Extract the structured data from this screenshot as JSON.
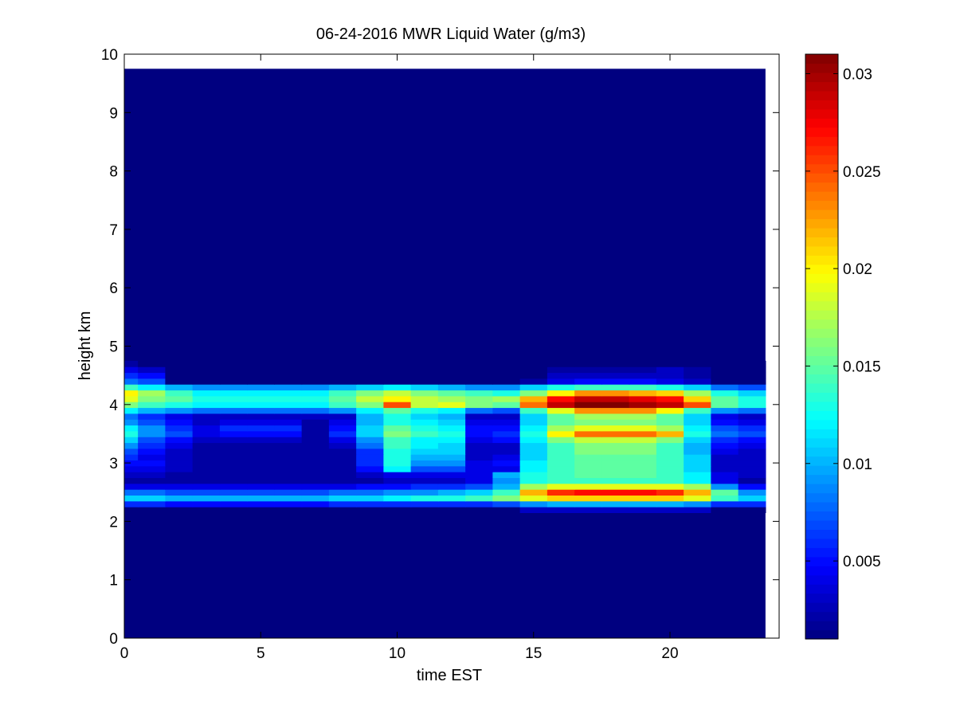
{
  "chart_data": {
    "type": "heatmap",
    "title": "06-24-2016 MWR Liquid Water (g/m3)",
    "xlabel": "time EST",
    "ylabel": "height km",
    "xlim": [
      0,
      24
    ],
    "ylim": [
      0,
      10
    ],
    "x_ticks": [
      0,
      5,
      10,
      15,
      20
    ],
    "y_ticks": [
      0,
      1,
      2,
      3,
      4,
      5,
      6,
      7,
      8,
      9,
      10
    ],
    "colormap": "jet",
    "clim": [
      0.001,
      0.031
    ],
    "colorbar_ticks": [
      0.005,
      0.01,
      0.015,
      0.02,
      0.025,
      0.03
    ],
    "colorbar_tick_labels": [
      "0.005",
      "0.01",
      "0.015",
      "0.02",
      "0.025",
      "0.03"
    ],
    "grid": false,
    "data_extent": {
      "x_min": 0,
      "x_max": 23.5,
      "y_min": 0,
      "y_max": 9.75
    },
    "time_bins": [
      0,
      1,
      2,
      3,
      4,
      5,
      6,
      7,
      8,
      9,
      10,
      11,
      12,
      13,
      14,
      15,
      16,
      17,
      18,
      19,
      20,
      21,
      22,
      23
    ],
    "height_bins_km": [
      2.2,
      2.3,
      2.4,
      2.5,
      2.6,
      2.7,
      2.8,
      2.9,
      3.0,
      3.1,
      3.2,
      3.3,
      3.4,
      3.5,
      3.6,
      3.7,
      3.8,
      3.9,
      4.0,
      4.1,
      4.2,
      4.3,
      4.4,
      4.5,
      4.6,
      4.7
    ],
    "background_value": 0.001,
    "values": [
      [
        0.001,
        0.001,
        0.001,
        0.001,
        0.001,
        0.001,
        0.001,
        0.001,
        0.001,
        0.001,
        0.001,
        0.001,
        0.001,
        0.001,
        0.001,
        0.003,
        0.003,
        0.003,
        0.003,
        0.003,
        0.003,
        0.003,
        0.001,
        0.001
      ],
      [
        0.006,
        0.006,
        0.005,
        0.005,
        0.005,
        0.005,
        0.005,
        0.005,
        0.006,
        0.006,
        0.006,
        0.006,
        0.006,
        0.006,
        0.007,
        0.009,
        0.01,
        0.01,
        0.01,
        0.01,
        0.01,
        0.009,
        0.006,
        0.006
      ],
      [
        0.011,
        0.011,
        0.01,
        0.01,
        0.01,
        0.01,
        0.01,
        0.01,
        0.011,
        0.011,
        0.012,
        0.013,
        0.013,
        0.014,
        0.016,
        0.019,
        0.021,
        0.021,
        0.021,
        0.021,
        0.021,
        0.019,
        0.014,
        0.011
      ],
      [
        0.008,
        0.008,
        0.007,
        0.007,
        0.007,
        0.007,
        0.007,
        0.007,
        0.008,
        0.008,
        0.009,
        0.009,
        0.01,
        0.011,
        0.014,
        0.022,
        0.026,
        0.027,
        0.027,
        0.027,
        0.026,
        0.022,
        0.015,
        0.009
      ],
      [
        0.004,
        0.004,
        0.004,
        0.004,
        0.004,
        0.004,
        0.004,
        0.004,
        0.004,
        0.005,
        0.005,
        0.006,
        0.006,
        0.007,
        0.01,
        0.017,
        0.019,
        0.019,
        0.019,
        0.019,
        0.019,
        0.017,
        0.009,
        0.005
      ],
      [
        0.002,
        0.002,
        0.002,
        0.002,
        0.002,
        0.002,
        0.002,
        0.002,
        0.002,
        0.002,
        0.003,
        0.003,
        0.003,
        0.004,
        0.009,
        0.013,
        0.014,
        0.014,
        0.014,
        0.014,
        0.014,
        0.012,
        0.004,
        0.002
      ],
      [
        0.003,
        0.003,
        0.002,
        0.002,
        0.002,
        0.002,
        0.002,
        0.002,
        0.002,
        0.003,
        0.004,
        0.004,
        0.004,
        0.004,
        0.01,
        0.013,
        0.014,
        0.015,
        0.015,
        0.015,
        0.014,
        0.012,
        0.004,
        0.003
      ],
      [
        0.004,
        0.004,
        0.003,
        0.002,
        0.002,
        0.002,
        0.002,
        0.002,
        0.002,
        0.005,
        0.012,
        0.007,
        0.007,
        0.004,
        0.004,
        0.012,
        0.014,
        0.015,
        0.015,
        0.015,
        0.014,
        0.011,
        0.003,
        0.003
      ],
      [
        0.005,
        0.005,
        0.003,
        0.002,
        0.002,
        0.002,
        0.002,
        0.002,
        0.002,
        0.006,
        0.013,
        0.009,
        0.009,
        0.004,
        0.005,
        0.012,
        0.014,
        0.015,
        0.015,
        0.015,
        0.014,
        0.011,
        0.003,
        0.003
      ],
      [
        0.006,
        0.004,
        0.003,
        0.002,
        0.002,
        0.002,
        0.002,
        0.002,
        0.002,
        0.006,
        0.013,
        0.01,
        0.01,
        0.003,
        0.004,
        0.011,
        0.014,
        0.015,
        0.015,
        0.015,
        0.014,
        0.011,
        0.003,
        0.003
      ],
      [
        0.007,
        0.005,
        0.003,
        0.002,
        0.002,
        0.002,
        0.002,
        0.002,
        0.002,
        0.006,
        0.013,
        0.011,
        0.011,
        0.003,
        0.003,
        0.011,
        0.014,
        0.016,
        0.016,
        0.016,
        0.014,
        0.01,
        0.004,
        0.003
      ],
      [
        0.009,
        0.006,
        0.004,
        0.002,
        0.002,
        0.002,
        0.002,
        0.002,
        0.003,
        0.008,
        0.014,
        0.012,
        0.011,
        0.003,
        0.003,
        0.011,
        0.014,
        0.016,
        0.016,
        0.016,
        0.014,
        0.01,
        0.005,
        0.004
      ],
      [
        0.011,
        0.007,
        0.005,
        0.003,
        0.003,
        0.003,
        0.003,
        0.002,
        0.004,
        0.009,
        0.014,
        0.012,
        0.012,
        0.004,
        0.005,
        0.012,
        0.016,
        0.018,
        0.018,
        0.018,
        0.016,
        0.011,
        0.006,
        0.005
      ],
      [
        0.013,
        0.009,
        0.007,
        0.004,
        0.005,
        0.005,
        0.005,
        0.002,
        0.006,
        0.011,
        0.016,
        0.014,
        0.013,
        0.005,
        0.006,
        0.013,
        0.02,
        0.024,
        0.024,
        0.024,
        0.022,
        0.013,
        0.008,
        0.007
      ],
      [
        0.012,
        0.009,
        0.006,
        0.004,
        0.006,
        0.006,
        0.006,
        0.002,
        0.005,
        0.011,
        0.015,
        0.013,
        0.012,
        0.005,
        0.005,
        0.012,
        0.017,
        0.019,
        0.019,
        0.019,
        0.017,
        0.012,
        0.007,
        0.006
      ],
      [
        0.009,
        0.007,
        0.005,
        0.003,
        0.004,
        0.004,
        0.004,
        0.002,
        0.004,
        0.01,
        0.013,
        0.012,
        0.011,
        0.004,
        0.004,
        0.011,
        0.015,
        0.016,
        0.016,
        0.016,
        0.015,
        0.011,
        0.005,
        0.004
      ],
      [
        0.008,
        0.006,
        0.004,
        0.003,
        0.003,
        0.003,
        0.003,
        0.003,
        0.003,
        0.01,
        0.013,
        0.011,
        0.01,
        0.003,
        0.003,
        0.011,
        0.015,
        0.017,
        0.017,
        0.017,
        0.015,
        0.011,
        0.004,
        0.003
      ],
      [
        0.012,
        0.01,
        0.009,
        0.008,
        0.008,
        0.008,
        0.008,
        0.008,
        0.009,
        0.012,
        0.015,
        0.013,
        0.012,
        0.008,
        0.007,
        0.014,
        0.019,
        0.023,
        0.023,
        0.023,
        0.02,
        0.014,
        0.009,
        0.008
      ],
      [
        0.016,
        0.014,
        0.013,
        0.012,
        0.012,
        0.012,
        0.012,
        0.012,
        0.014,
        0.016,
        0.025,
        0.018,
        0.019,
        0.016,
        0.015,
        0.024,
        0.029,
        0.031,
        0.031,
        0.03,
        0.029,
        0.025,
        0.015,
        0.013
      ],
      [
        0.019,
        0.016,
        0.015,
        0.013,
        0.013,
        0.013,
        0.013,
        0.013,
        0.015,
        0.018,
        0.02,
        0.018,
        0.017,
        0.016,
        0.017,
        0.022,
        0.027,
        0.029,
        0.029,
        0.028,
        0.027,
        0.021,
        0.015,
        0.013
      ],
      [
        0.02,
        0.017,
        0.014,
        0.012,
        0.012,
        0.012,
        0.012,
        0.012,
        0.014,
        0.016,
        0.018,
        0.016,
        0.015,
        0.014,
        0.013,
        0.016,
        0.02,
        0.023,
        0.023,
        0.022,
        0.021,
        0.017,
        0.013,
        0.011
      ],
      [
        0.014,
        0.012,
        0.01,
        0.009,
        0.009,
        0.009,
        0.009,
        0.009,
        0.01,
        0.011,
        0.012,
        0.011,
        0.01,
        0.009,
        0.009,
        0.011,
        0.013,
        0.014,
        0.014,
        0.014,
        0.013,
        0.011,
        0.008,
        0.007
      ],
      [
        0.008,
        0.007,
        0.001,
        0.001,
        0.001,
        0.001,
        0.001,
        0.001,
        0.001,
        0.001,
        0.001,
        0.001,
        0.001,
        0.001,
        0.001,
        0.002,
        0.004,
        0.005,
        0.005,
        0.005,
        0.004,
        0.003,
        0.001,
        0.001
      ],
      [
        0.006,
        0.005,
        0.001,
        0.001,
        0.001,
        0.001,
        0.001,
        0.001,
        0.001,
        0.001,
        0.001,
        0.001,
        0.001,
        0.001,
        0.001,
        0.001,
        0.003,
        0.003,
        0.003,
        0.003,
        0.003,
        0.002,
        0.001,
        0.001
      ],
      [
        0.004,
        0.003,
        0.001,
        0.001,
        0.001,
        0.001,
        0.001,
        0.001,
        0.001,
        0.001,
        0.001,
        0.001,
        0.001,
        0.001,
        0.001,
        0.001,
        0.002,
        0.002,
        0.002,
        0.002,
        0.003,
        0.002,
        0.001,
        0.001
      ],
      [
        0.002,
        0.001,
        0.001,
        0.001,
        0.001,
        0.001,
        0.001,
        0.001,
        0.001,
        0.001,
        0.001,
        0.001,
        0.001,
        0.001,
        0.001,
        0.001,
        0.001,
        0.001,
        0.001,
        0.001,
        0.001,
        0.001,
        0.001,
        0.001
      ]
    ]
  }
}
